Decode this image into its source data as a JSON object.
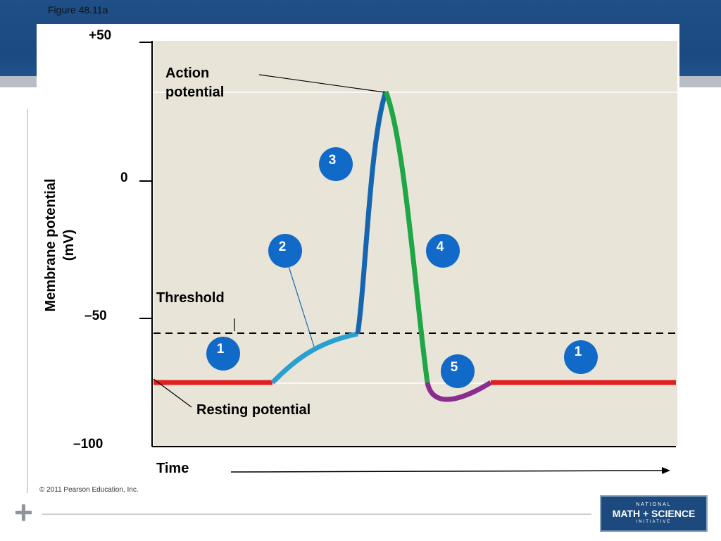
{
  "figure_label": "Figure 48.11a",
  "copyright": "© 2011 Pearson Education, Inc.",
  "logo": {
    "line1": "NATIONAL",
    "line2": "MATH + SCIENCE",
    "line3": "INITIATIVE"
  },
  "axes": {
    "ylabel_line1": "Membrane potential",
    "ylabel_line2": "(mV)",
    "xlabel": "Time",
    "ticks": [
      "+50",
      "0",
      "–50",
      "–100"
    ]
  },
  "annotations": {
    "action_potential_line1": "Action",
    "action_potential_line2": "potential",
    "threshold": "Threshold",
    "resting_potential": "Resting potential"
  },
  "phase_markers": [
    "1",
    "2",
    "3",
    "4",
    "5",
    "1"
  ],
  "colors": {
    "plot_background": "#e8e4d8",
    "resting": "#e02020",
    "depolarizing": "#2aa0d0",
    "rising": "#1565b0",
    "falling": "#1fa645",
    "undershoot": "#8a2d8e",
    "marker": "#1169c8"
  }
}
